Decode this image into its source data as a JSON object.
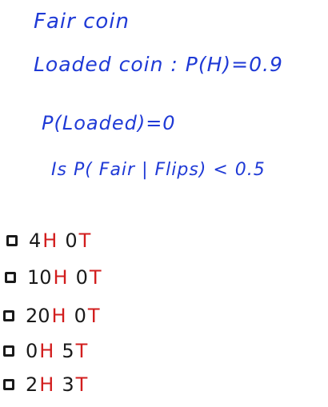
{
  "lines": {
    "fair_coin": "Fair coin",
    "loaded_coin": "Loaded coin : P(H)=0.9",
    "p_loaded": "P(Loaded)=0",
    "question": "Is  P( Fair | Flips) < 0.5"
  },
  "options": [
    {
      "heads": "4",
      "h": "H",
      "tails": "0",
      "t": "T"
    },
    {
      "heads": "10",
      "h": "H",
      "tails": "0",
      "t": "T"
    },
    {
      "heads": "20",
      "h": "H",
      "tails": "0",
      "t": "T"
    },
    {
      "heads": "0",
      "h": "H",
      "tails": "5",
      "t": "T"
    },
    {
      "heads": "2",
      "h": "H",
      "tails": "3",
      "t": "T"
    }
  ],
  "colors": {
    "ink_blue": "#1f3ad6",
    "ink_red": "#d21d1d",
    "ink_black": "#1a1a1a"
  }
}
